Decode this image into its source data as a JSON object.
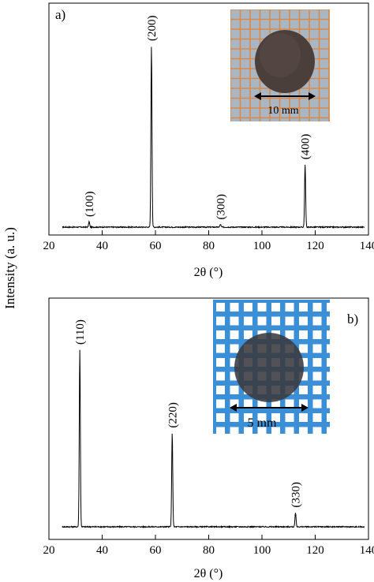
{
  "figure": {
    "ylabel": "Intensity (a. u.)"
  },
  "chart_data": [
    {
      "type": "line",
      "panel_label": "a)",
      "xlabel": "2θ (°)",
      "ylabel": "Intensity (a. u.)",
      "xlim": [
        20,
        140
      ],
      "xticks": [
        20,
        40,
        60,
        80,
        100,
        120,
        140
      ],
      "ylim": [
        0,
        100
      ],
      "grid": false,
      "baseline": 2,
      "peaks": [
        {
          "label": "(100)",
          "x": 35.1,
          "y": 5
        },
        {
          "label": "(200)",
          "x": 58.5,
          "y": 100
        },
        {
          "label": "(300)",
          "x": 84.4,
          "y": 3.5
        },
        {
          "label": "(400)",
          "x": 116.2,
          "y": 36
        }
      ],
      "inset": {
        "kind": "photo",
        "scale_label": "10 mm",
        "grid_color": "#d98a4a",
        "background": "#a9b6c4",
        "disc_color": "#4b3f3c"
      }
    },
    {
      "type": "line",
      "panel_label": "b)",
      "xlabel": "2θ (°)",
      "ylabel": "Intensity (a. u.)",
      "xlim": [
        20,
        140
      ],
      "xticks": [
        20,
        40,
        60,
        80,
        100,
        120,
        140
      ],
      "ylim": [
        0,
        100
      ],
      "grid": false,
      "baseline": 2,
      "peaks": [
        {
          "label": "(110)",
          "x": 31.6,
          "y": 100
        },
        {
          "label": "(220)",
          "x": 66.3,
          "y": 54
        },
        {
          "label": "(330)",
          "x": 112.6,
          "y": 10
        }
      ],
      "inset": {
        "kind": "photo",
        "scale_label": "5 mm",
        "grid_color": "#3a8fd6",
        "background": "#ffffff",
        "disc_color": "#3a3a3f"
      }
    }
  ]
}
